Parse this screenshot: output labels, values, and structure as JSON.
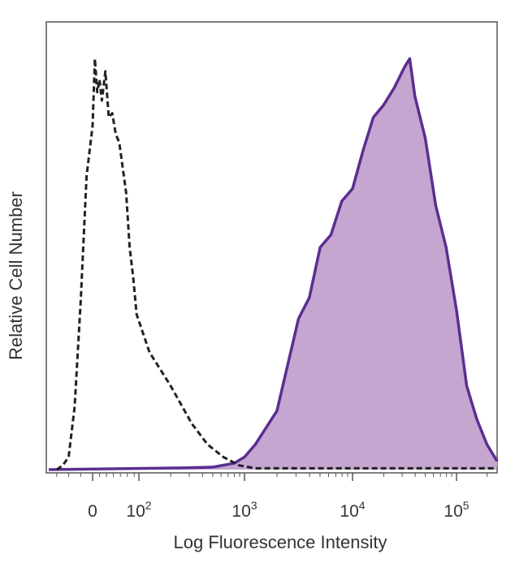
{
  "chart_data": {
    "type": "area",
    "title": "",
    "xlabel": "Log Fluorescence Intensity",
    "ylabel": "Relative Cell Number",
    "xscale": "biexponential (log above ~10^2)",
    "xlim": [
      -1.1,
      5.4
    ],
    "ylim": [
      0,
      100
    ],
    "grid": false,
    "legend": "none",
    "x_ticks": [
      {
        "value": 0,
        "base": "0",
        "exp": ""
      },
      {
        "value": 2,
        "base": "10",
        "exp": "2"
      },
      {
        "value": 3,
        "base": "10",
        "exp": "3"
      },
      {
        "value": 4,
        "base": "10",
        "exp": "4"
      },
      {
        "value": 5,
        "base": "10",
        "exp": "5"
      }
    ],
    "x_units_note": "x values are log10 fluorescence; values below 2 are on the linear/compressed region where 0 is the labeled zero",
    "series": [
      {
        "name": "",
        "style": "dashed",
        "color": "#222222",
        "fill": false,
        "x": [
          -0.9,
          -0.75,
          -0.6,
          -0.45,
          -0.3,
          -0.15,
          0.0,
          0.1,
          0.2,
          0.3,
          0.4,
          0.55,
          0.7,
          0.85,
          1.0,
          1.15,
          1.3,
          1.45,
          1.6,
          1.75,
          1.9,
          2.1,
          2.3,
          2.5,
          2.65,
          2.8,
          2.95,
          3.1,
          3.5,
          4.0,
          4.5,
          5.0,
          5.4
        ],
        "y": [
          0,
          1,
          3,
          15,
          40,
          70,
          82,
          98,
          90,
          93,
          88,
          95,
          84,
          85,
          80,
          78,
          72,
          66,
          53,
          46,
          37,
          28,
          20,
          11,
          6,
          3,
          1,
          0.3,
          0.3,
          0.3,
          0.3,
          0.3,
          0.3
        ]
      },
      {
        "name": "",
        "style": "solid",
        "color": "#5b2e91",
        "fill": true,
        "fill_color": "#c4a6d0",
        "x": [
          -1.1,
          2.4,
          2.7,
          2.9,
          3.0,
          3.1,
          3.2,
          3.3,
          3.4,
          3.5,
          3.6,
          3.7,
          3.8,
          3.9,
          4.0,
          4.1,
          4.2,
          4.3,
          4.4,
          4.5,
          4.55,
          4.6,
          4.7,
          4.8,
          4.9,
          5.0,
          5.1,
          5.2,
          5.3,
          5.4
        ],
        "y": [
          0,
          0.4,
          0.6,
          1.5,
          3,
          6,
          10,
          14,
          25,
          36,
          41,
          53,
          56,
          64,
          67,
          76,
          84,
          87,
          91,
          96,
          98,
          89,
          79,
          63,
          53,
          38,
          20,
          12,
          6,
          2
        ]
      }
    ]
  }
}
